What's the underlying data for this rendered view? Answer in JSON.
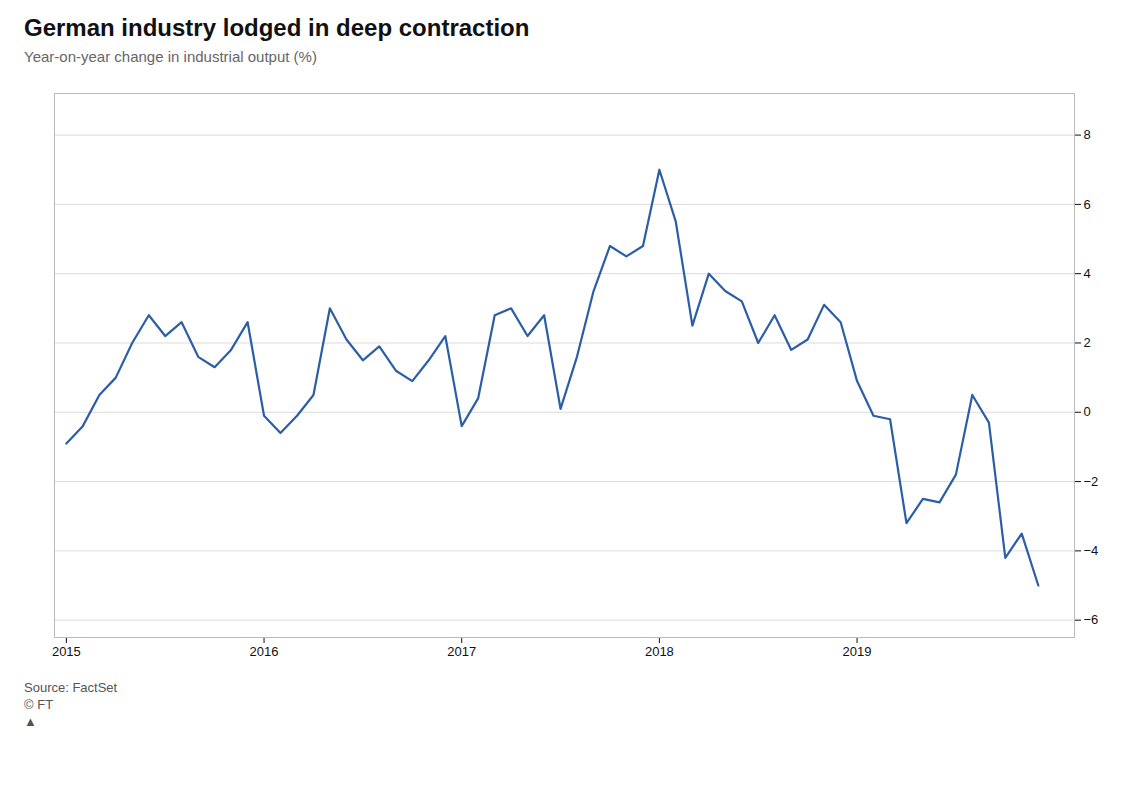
{
  "chart_data": {
    "type": "line",
    "title": "German industry lodged in deep contraction",
    "subtitle": "Year-on-year change in industrial output (%)",
    "annotations": [
      "Source: FactSet",
      "© FT",
      "▲"
    ],
    "color": "#2b5ea7",
    "x": [
      2015.0,
      2015.083,
      2015.167,
      2015.25,
      2015.333,
      2015.417,
      2015.5,
      2015.583,
      2015.667,
      2015.75,
      2015.833,
      2015.917,
      2016.0,
      2016.083,
      2016.167,
      2016.25,
      2016.333,
      2016.417,
      2016.5,
      2016.583,
      2016.667,
      2016.75,
      2016.833,
      2016.917,
      2017.0,
      2017.083,
      2017.167,
      2017.25,
      2017.333,
      2017.417,
      2017.5,
      2017.583,
      2017.667,
      2017.75,
      2017.833,
      2017.917,
      2018.0,
      2018.083,
      2018.167,
      2018.25,
      2018.333,
      2018.417,
      2018.5,
      2018.583,
      2018.667,
      2018.75,
      2018.833,
      2018.917,
      2019.0,
      2019.083,
      2019.167,
      2019.25,
      2019.333,
      2019.417,
      2019.5,
      2019.583,
      2019.667,
      2019.75,
      2019.833,
      2019.917
    ],
    "values": [
      -0.9,
      -0.4,
      0.5,
      1.0,
      2.0,
      2.8,
      2.2,
      2.6,
      1.6,
      1.3,
      1.8,
      2.6,
      -0.1,
      -0.6,
      -0.1,
      0.5,
      3.0,
      2.1,
      1.5,
      1.9,
      1.2,
      0.9,
      1.5,
      2.2,
      -0.4,
      0.4,
      2.8,
      3.0,
      2.2,
      2.8,
      0.1,
      1.6,
      3.5,
      4.8,
      4.5,
      4.8,
      7.0,
      5.5,
      2.5,
      4.0,
      3.5,
      3.2,
      2.0,
      2.8,
      1.8,
      2.1,
      3.1,
      2.6,
      0.9,
      -0.1,
      -0.2,
      -3.2,
      -2.5,
      -2.6,
      -1.8,
      0.5,
      -0.3,
      -4.2,
      -3.5,
      -5.0
    ],
    "xlim": [
      2014.94,
      2020.1
    ],
    "xticks": [
      2015,
      2016,
      2017,
      2018,
      2019
    ],
    "ylim": [
      -6.5,
      9.2
    ],
    "yticks": [
      -6,
      -4,
      -2,
      0,
      2,
      4,
      6,
      8
    ],
    "grid": true
  }
}
